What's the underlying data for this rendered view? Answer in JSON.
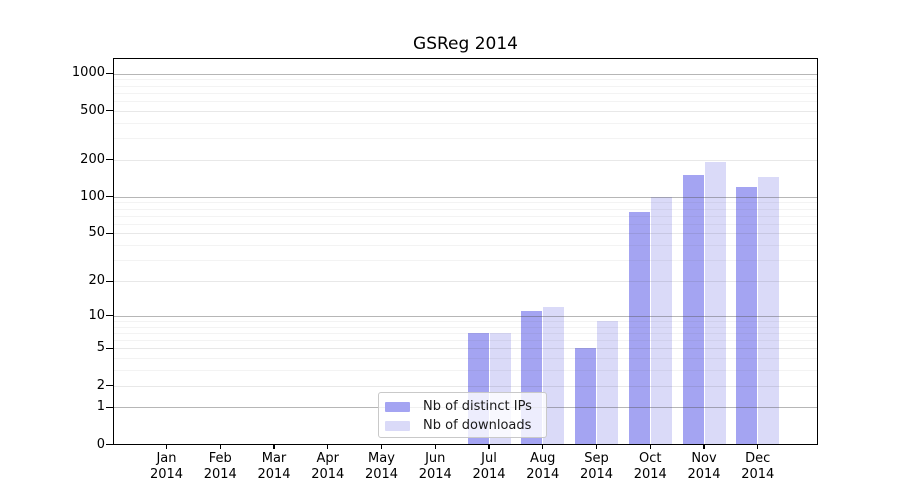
{
  "figure": {
    "background": "#ffffff"
  },
  "chart_data": {
    "type": "bar",
    "title": "GSReg 2014",
    "xlabel": "",
    "ylabel": "",
    "yscale": "log1p",
    "ylim": [
      0,
      1300
    ],
    "grid": true,
    "legend_position": "lower center",
    "year": "2014",
    "categories": [
      "Jan",
      "Feb",
      "Mar",
      "Apr",
      "May",
      "Jun",
      "Jul",
      "Aug",
      "Sep",
      "Oct",
      "Nov",
      "Dec"
    ],
    "yticks_labeled": [
      0,
      1,
      2,
      5,
      10,
      20,
      50,
      100,
      200,
      500,
      1000
    ],
    "yticks_decade": [
      1,
      10,
      100,
      1000
    ],
    "yticks_mid": [
      2,
      5,
      20,
      50,
      200,
      500
    ],
    "yticks_minor": [
      3,
      4,
      6,
      7,
      8,
      9,
      30,
      40,
      60,
      70,
      80,
      90,
      300,
      400,
      600,
      700,
      800,
      900
    ],
    "series": [
      {
        "name": "Nb of distinct IPs",
        "color": "#a4a4f2",
        "values": [
          null,
          null,
          null,
          null,
          null,
          null,
          7,
          11,
          5,
          75,
          150,
          120
        ]
      },
      {
        "name": "Nb of downloads",
        "color": "#dadaf8",
        "values": [
          null,
          null,
          null,
          null,
          null,
          null,
          7,
          12,
          9,
          100,
          190,
          145
        ]
      }
    ],
    "colors": {
      "spine": "#000000",
      "grid_decade": "#b3b3b3",
      "grid_mid": "#e3e3e3",
      "grid_minor": "#f0f0f0",
      "text": "#000000",
      "legend_border": "#c9c9c9"
    }
  }
}
